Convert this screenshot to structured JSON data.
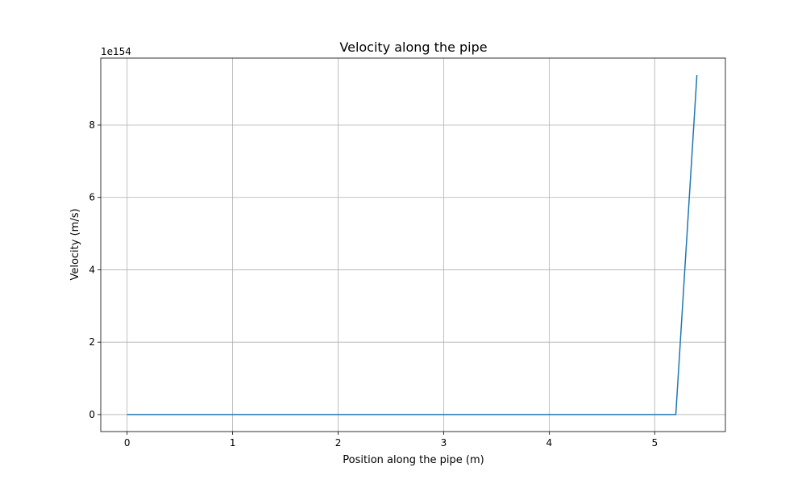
{
  "chart_data": {
    "type": "line",
    "title": "Velocity along the pipe",
    "xlabel": "Position along the pipe (m)",
    "ylabel": "Velocity (m/s)",
    "y_offset_label": "1e154",
    "xlim": [
      -0.25,
      5.67
    ],
    "ylim": [
      -0.47,
      9.85
    ],
    "x_ticks": [
      0,
      1,
      2,
      3,
      4,
      5
    ],
    "y_ticks": [
      0,
      2,
      4,
      6,
      8
    ],
    "grid": true,
    "series": [
      {
        "color": "#1f77b4",
        "x": [
          0,
          0.5,
          1,
          1.5,
          2,
          2.5,
          3,
          3.5,
          4,
          4.5,
          5,
          5.2,
          5.4
        ],
        "y": [
          0,
          0,
          0,
          0,
          0,
          0,
          0,
          0,
          0,
          0,
          0,
          0,
          9.38
        ]
      }
    ]
  }
}
